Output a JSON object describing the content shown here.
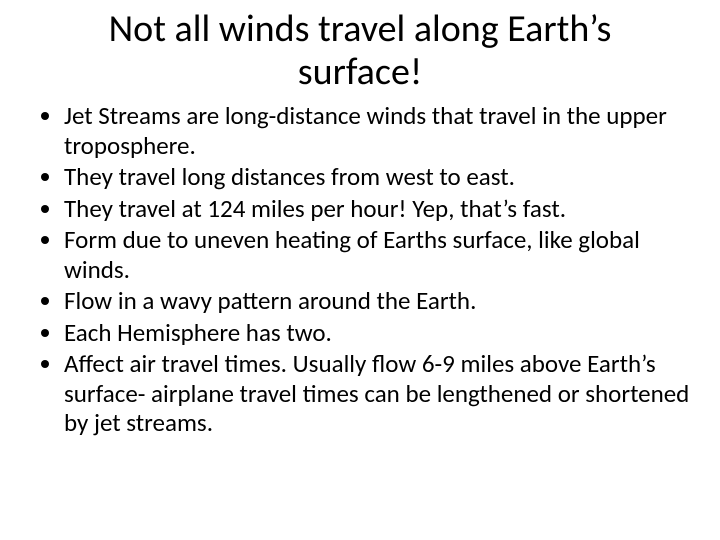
{
  "slide": {
    "title": "Not all winds travel along Earth’s surface!",
    "title_fontsize": 38,
    "title_align": "center",
    "bullets": [
      "Jet Streams are long-distance winds that travel in the upper troposphere.",
      "They travel long distances from west to east.",
      "They travel at 124 miles per hour! Yep, that’s fast.",
      "Form due to uneven heating of Earths surface, like global winds.",
      "Flow in a wavy pattern around the Earth.",
      "Each Hemisphere has two.",
      "Affect air travel times. Usually flow 6-9 miles above Earth’s surface- airplane travel times can be lengthened or shortened by jet streams."
    ],
    "bullet_fontsize": 25,
    "text_color": "#000000",
    "background_color": "#ffffff"
  }
}
